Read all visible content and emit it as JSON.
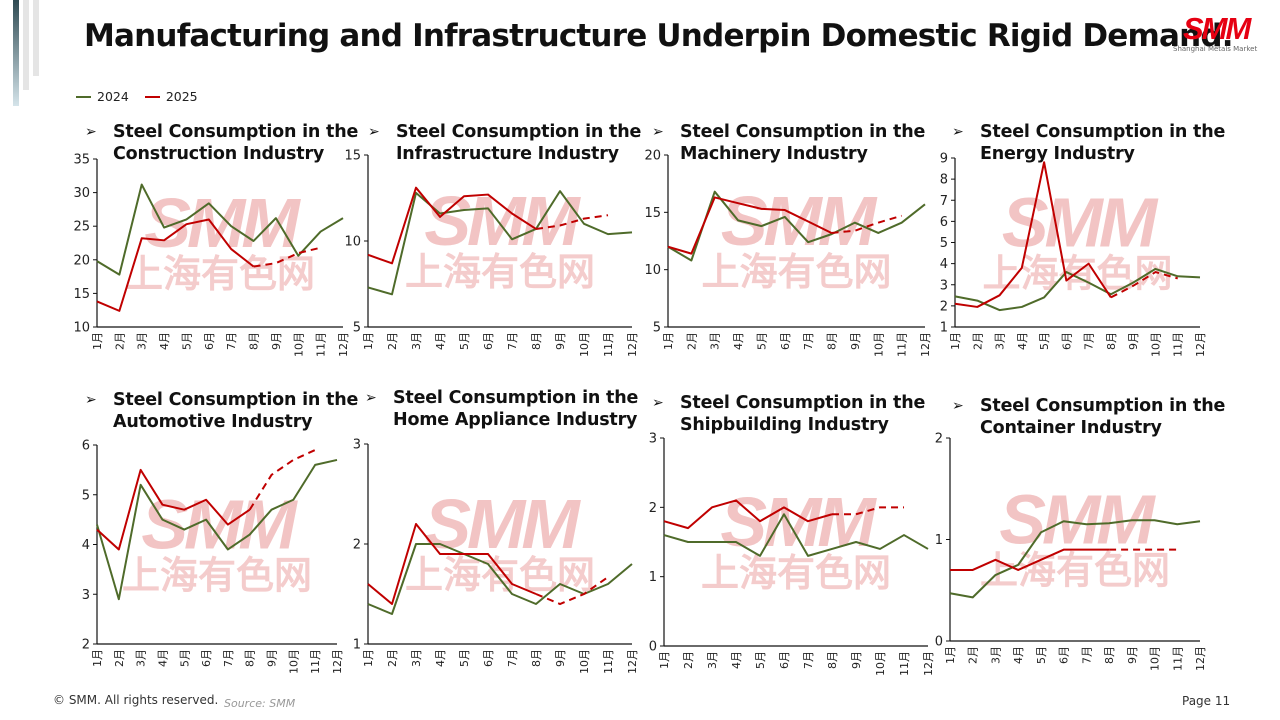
{
  "slide": {
    "title": "Manufacturing and Infrastructure Underpin Domestic Rigid Demand.",
    "logo_mark": "SMM",
    "logo_sub": "Shanghai Metals Market",
    "footer_copyright": "© SMM. All rights reserved.",
    "footer_source": "Source: SMM",
    "page_label": "Page 11",
    "watermark_top": "SMM",
    "watermark_bottom": "上海有色网",
    "bullet_icon": "➢"
  },
  "legend": [
    {
      "label": "2024",
      "color": "#4f6b2a"
    },
    {
      "label": "2025",
      "color": "#c00000"
    }
  ],
  "chart_data": [
    {
      "type": "line",
      "title": "Steel Consumption in the Construction Industry",
      "title_lines": [
        "Steel Consumption in the",
        "Construction Industry"
      ],
      "categories": [
        "1月",
        "2月",
        "3月",
        "4月",
        "5月",
        "6月",
        "7月",
        "8月",
        "9月",
        "10月",
        "11月",
        "12月"
      ],
      "ylim": [
        10,
        35
      ],
      "yticks": [
        "10",
        "15",
        "20",
        "25",
        "30",
        "35"
      ],
      "series": [
        {
          "name": "2024",
          "color": "#4f6b2a",
          "values": [
            19.8,
            17.8,
            31.2,
            24.8,
            26.0,
            28.4,
            25.0,
            22.8,
            26.2,
            20.6,
            24.2,
            26.2
          ]
        },
        {
          "name": "2025",
          "color": "#c00000",
          "values": [
            13.8,
            12.4,
            23.2,
            22.9,
            25.3,
            26.0,
            21.6,
            19.0,
            19.5,
            21.0,
            21.8
          ],
          "forecast_from_index": 7
        }
      ]
    },
    {
      "type": "line",
      "title": "Steel Consumption in the Infrastructure Industry",
      "title_lines": [
        "Steel Consumption in the",
        "Infrastructure Industry"
      ],
      "categories": [
        "1月",
        "2月",
        "3月",
        "4月",
        "5月",
        "6月",
        "7月",
        "8月",
        "9月",
        "10月",
        "11月",
        "12月"
      ],
      "ylim": [
        5,
        15
      ],
      "yticks": [
        "5",
        "10",
        "15"
      ],
      "series": [
        {
          "name": "2024",
          "color": "#4f6b2a",
          "values": [
            7.3,
            6.9,
            12.8,
            11.6,
            11.8,
            11.9,
            10.1,
            10.7,
            12.9,
            11.0,
            10.4,
            10.5
          ]
        },
        {
          "name": "2025",
          "color": "#c00000",
          "values": [
            9.2,
            8.7,
            13.1,
            11.4,
            12.6,
            12.7,
            11.6,
            10.7,
            10.9,
            11.3,
            11.5
          ],
          "forecast_from_index": 7
        }
      ]
    },
    {
      "type": "line",
      "title": "Steel Consumption in the Machinery Industry",
      "title_lines": [
        "Steel Consumption in the",
        "Machinery Industry"
      ],
      "categories": [
        "1月",
        "2月",
        "3月",
        "4月",
        "5月",
        "6月",
        "7月",
        "8月",
        "9月",
        "10月",
        "11月",
        "12月"
      ],
      "ylim": [
        5,
        20
      ],
      "yticks": [
        "5",
        "10",
        "15",
        "20"
      ],
      "series": [
        {
          "name": "2024",
          "color": "#4f6b2a",
          "values": [
            12.0,
            10.8,
            16.8,
            14.3,
            13.8,
            14.6,
            12.4,
            13.1,
            14.1,
            13.2,
            14.1,
            15.7
          ]
        },
        {
          "name": "2025",
          "color": "#c00000",
          "values": [
            12.0,
            11.4,
            16.3,
            15.8,
            15.3,
            15.2,
            14.2,
            13.2,
            13.4,
            14.1,
            14.7
          ],
          "forecast_from_index": 7
        }
      ]
    },
    {
      "type": "line",
      "title": "Steel Consumption in the Energy Industry",
      "title_lines": [
        "Steel Consumption in the",
        "Energy Industry"
      ],
      "categories": [
        "1月",
        "2月",
        "3月",
        "4月",
        "5月",
        "6月",
        "7月",
        "8月",
        "9月",
        "10月",
        "11月",
        "12月"
      ],
      "ylim": [
        1,
        9
      ],
      "yticks": [
        "1",
        "2",
        "3",
        "4",
        "5",
        "6",
        "7",
        "8",
        "9"
      ],
      "series": [
        {
          "name": "2024",
          "color": "#4f6b2a",
          "values": [
            2.45,
            2.25,
            1.8,
            1.95,
            2.4,
            3.6,
            3.1,
            2.55,
            3.1,
            3.75,
            3.4,
            3.35
          ]
        },
        {
          "name": "2025",
          "color": "#c00000",
          "values": [
            2.1,
            1.95,
            2.5,
            3.8,
            8.8,
            3.2,
            4.0,
            2.4,
            2.95,
            3.6,
            3.3
          ],
          "forecast_from_index": 7
        }
      ]
    },
    {
      "type": "line",
      "title": "Steel Consumption in the Automotive Industry",
      "title_lines": [
        "Steel Consumption in the",
        "Automotive Industry"
      ],
      "categories": [
        "1月",
        "2月",
        "3月",
        "4月",
        "5月",
        "6月",
        "7月",
        "8月",
        "9月",
        "10月",
        "11月",
        "12月"
      ],
      "ylim": [
        2,
        6
      ],
      "yticks": [
        "2",
        "3",
        "4",
        "5",
        "6"
      ],
      "series": [
        {
          "name": "2024",
          "color": "#4f6b2a",
          "values": [
            4.4,
            2.9,
            5.2,
            4.5,
            4.3,
            4.5,
            3.9,
            4.2,
            4.7,
            4.9,
            5.6,
            5.7
          ]
        },
        {
          "name": "2025",
          "color": "#c00000",
          "values": [
            4.3,
            3.9,
            5.5,
            4.8,
            4.7,
            4.9,
            4.4,
            4.7,
            5.4,
            5.7,
            5.9
          ],
          "forecast_from_index": 7
        }
      ]
    },
    {
      "type": "line",
      "title": "Steel Consumption in the Home Appliance Industry",
      "title_lines": [
        "Steel Consumption in the",
        "Home Appliance Industry"
      ],
      "categories": [
        "1月",
        "2月",
        "3月",
        "4月",
        "5月",
        "6月",
        "7月",
        "8月",
        "9月",
        "10月",
        "11月",
        "12月"
      ],
      "ylim": [
        1,
        3
      ],
      "yticks": [
        "1",
        "2",
        "3"
      ],
      "series": [
        {
          "name": "2024",
          "color": "#4f6b2a",
          "values": [
            1.4,
            1.3,
            2.0,
            2.0,
            1.9,
            1.8,
            1.5,
            1.4,
            1.6,
            1.5,
            1.6,
            1.8
          ]
        },
        {
          "name": "2025",
          "color": "#c00000",
          "values": [
            1.6,
            1.4,
            2.2,
            1.9,
            1.9,
            1.9,
            1.6,
            1.5,
            1.4,
            1.5,
            1.67
          ],
          "forecast_from_index": 7
        }
      ]
    },
    {
      "type": "line",
      "title": "Steel Consumption in the Shipbuilding Industry",
      "title_lines": [
        "Steel Consumption in the",
        "Shipbuilding Industry"
      ],
      "categories": [
        "1月",
        "2月",
        "3月",
        "4月",
        "5月",
        "6月",
        "7月",
        "8月",
        "9月",
        "10月",
        "11月",
        "12月"
      ],
      "ylim": [
        0,
        3
      ],
      "yticks": [
        "0",
        "1",
        "2",
        "3"
      ],
      "series": [
        {
          "name": "2024",
          "color": "#4f6b2a",
          "values": [
            1.6,
            1.5,
            1.5,
            1.5,
            1.3,
            1.9,
            1.3,
            1.4,
            1.5,
            1.4,
            1.6,
            1.4
          ]
        },
        {
          "name": "2025",
          "color": "#c00000",
          "values": [
            1.8,
            1.7,
            2.0,
            2.1,
            1.8,
            2.0,
            1.8,
            1.9,
            1.9,
            2.0,
            2.0
          ],
          "forecast_from_index": 7
        }
      ]
    },
    {
      "type": "line",
      "title": "Steel Consumption in the Container Industry",
      "title_lines": [
        "Steel Consumption in the",
        "Container Industry"
      ],
      "categories": [
        "1月",
        "2月",
        "3月",
        "4月",
        "5月",
        "6月",
        "7月",
        "8月",
        "9月",
        "10月",
        "11月",
        "12月"
      ],
      "ylim": [
        0,
        2
      ],
      "yticks": [
        "0",
        "1",
        "2"
      ],
      "series": [
        {
          "name": "2024",
          "color": "#4f6b2a",
          "values": [
            0.47,
            0.43,
            0.65,
            0.75,
            1.07,
            1.18,
            1.15,
            1.16,
            1.19,
            1.19,
            1.15,
            1.18
          ]
        },
        {
          "name": "2025",
          "color": "#c00000",
          "values": [
            0.7,
            0.7,
            0.8,
            0.7,
            0.8,
            0.9,
            0.9,
            0.9,
            0.9,
            0.9,
            0.9
          ],
          "forecast_from_index": 7
        }
      ]
    }
  ]
}
